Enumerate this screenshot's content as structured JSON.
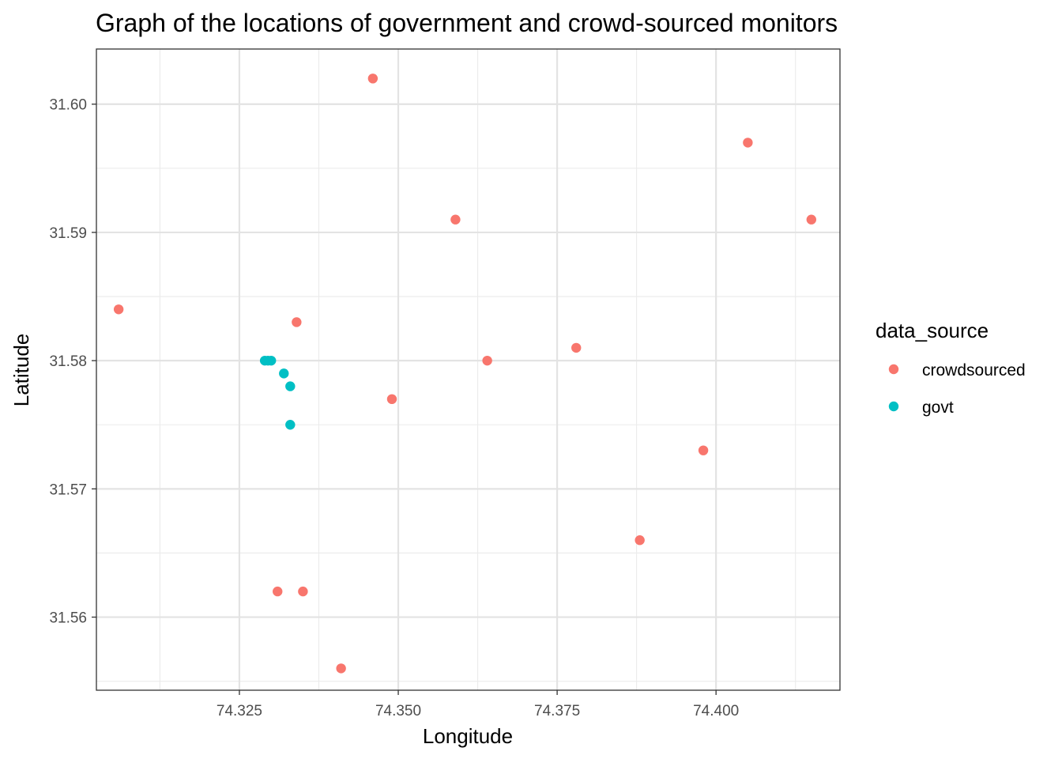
{
  "chart_data": {
    "type": "scatter",
    "title": "Graph of the locations of government and crowd-sourced monitors",
    "xlabel": "Longitude",
    "ylabel": "Latitude",
    "xlim": [
      74.3025,
      74.4195
    ],
    "ylim": [
      31.5543,
      31.6043
    ],
    "x_ticks": [
      74.325,
      74.35,
      74.375,
      74.4
    ],
    "x_tick_labels": [
      "74.325",
      "74.350",
      "74.375",
      "74.400"
    ],
    "x_minor": [
      74.3125,
      74.3375,
      74.3625,
      74.3875,
      74.4125
    ],
    "y_ticks": [
      31.56,
      31.57,
      31.58,
      31.59,
      31.6
    ],
    "y_tick_labels": [
      "31.56",
      "31.57",
      "31.58",
      "31.59",
      "31.60"
    ],
    "y_minor": [
      31.555,
      31.565,
      31.575,
      31.585,
      31.595
    ],
    "grid": true,
    "legend": {
      "title": "data_source",
      "placement": "right"
    },
    "series": [
      {
        "name": "crowdsourced",
        "color": "#F8766D",
        "points": [
          {
            "x": 74.306,
            "y": 31.584
          },
          {
            "x": 74.346,
            "y": 31.602
          },
          {
            "x": 74.359,
            "y": 31.591
          },
          {
            "x": 74.405,
            "y": 31.597
          },
          {
            "x": 74.415,
            "y": 31.591
          },
          {
            "x": 74.334,
            "y": 31.583
          },
          {
            "x": 74.364,
            "y": 31.58
          },
          {
            "x": 74.378,
            "y": 31.581
          },
          {
            "x": 74.349,
            "y": 31.577
          },
          {
            "x": 74.398,
            "y": 31.573
          },
          {
            "x": 74.388,
            "y": 31.566
          },
          {
            "x": 74.331,
            "y": 31.562
          },
          {
            "x": 74.335,
            "y": 31.562
          },
          {
            "x": 74.341,
            "y": 31.556
          }
        ]
      },
      {
        "name": "govt",
        "color": "#00BFC4",
        "points": [
          {
            "x": 74.329,
            "y": 31.58
          },
          {
            "x": 74.3295,
            "y": 31.58
          },
          {
            "x": 74.33,
            "y": 31.58
          },
          {
            "x": 74.332,
            "y": 31.579
          },
          {
            "x": 74.333,
            "y": 31.578
          },
          {
            "x": 74.333,
            "y": 31.575
          }
        ]
      }
    ]
  }
}
